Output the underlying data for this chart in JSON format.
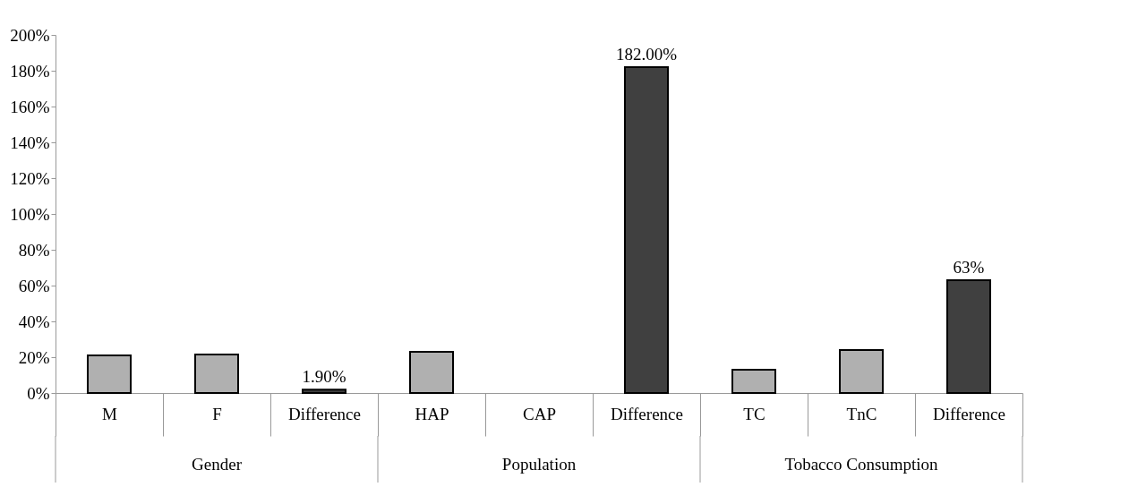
{
  "chart_data": {
    "type": "bar",
    "categories": [
      "M",
      "F",
      "Difference",
      "HAP",
      "CAP",
      "Difference",
      "TC",
      "TnC",
      "Difference"
    ],
    "values": [
      21,
      21.5,
      1.9,
      23,
      null,
      182,
      13,
      24,
      63
    ],
    "colors": [
      "#b0b0b0",
      "#b0b0b0",
      "#404040",
      "#b0b0b0",
      "#b0b0b0",
      "#404040",
      "#b0b0b0",
      "#b0b0b0",
      "#404040"
    ],
    "value_labels": [
      null,
      null,
      "1.90%",
      null,
      null,
      "182.00%",
      null,
      null,
      "63%"
    ],
    "annotations": [
      "Gender",
      "Population",
      "Tobacco Consumption"
    ],
    "ylim": [
      0,
      200
    ],
    "yticks": [
      {
        "value": 0,
        "label": "0%"
      },
      {
        "value": 20,
        "label": "20%"
      },
      {
        "value": 40,
        "label": "40%"
      },
      {
        "value": 60,
        "label": "60%"
      },
      {
        "value": 80,
        "label": "80%"
      },
      {
        "value": 100,
        "label": "100%"
      },
      {
        "value": 120,
        "label": "120%"
      },
      {
        "value": 140,
        "label": "140%"
      },
      {
        "value": 160,
        "label": "160%"
      },
      {
        "value": 180,
        "label": "180%"
      },
      {
        "value": 200,
        "label": "200%"
      }
    ],
    "grid": false
  }
}
